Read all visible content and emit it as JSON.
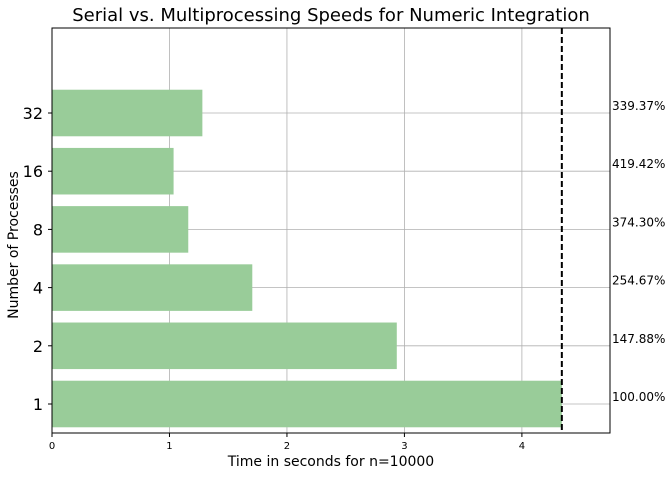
{
  "chart_data": {
    "type": "bar",
    "orientation": "horizontal",
    "title": "Serial vs. Multiprocessing Speeds for Numeric Integration",
    "xlabel": "Time in seconds for n=10000",
    "ylabel": "Number of Processes",
    "categories": [
      "1",
      "2",
      "4",
      "8",
      "16",
      "32"
    ],
    "values": [
      4.34,
      2.935,
      1.705,
      1.16,
      1.035,
      1.28
    ],
    "speedup_labels": [
      "100.00%",
      "147.88%",
      "254.67%",
      "374.30%",
      "419.42%",
      "339.37%"
    ],
    "xlim": [
      0,
      4.75
    ],
    "xticks": [
      "0",
      "1",
      "2",
      "3",
      "4"
    ],
    "reference_line": {
      "x": 4.34,
      "style": "dashed",
      "color": "#000000"
    },
    "bar_color": "#99cc99",
    "grid": true
  }
}
